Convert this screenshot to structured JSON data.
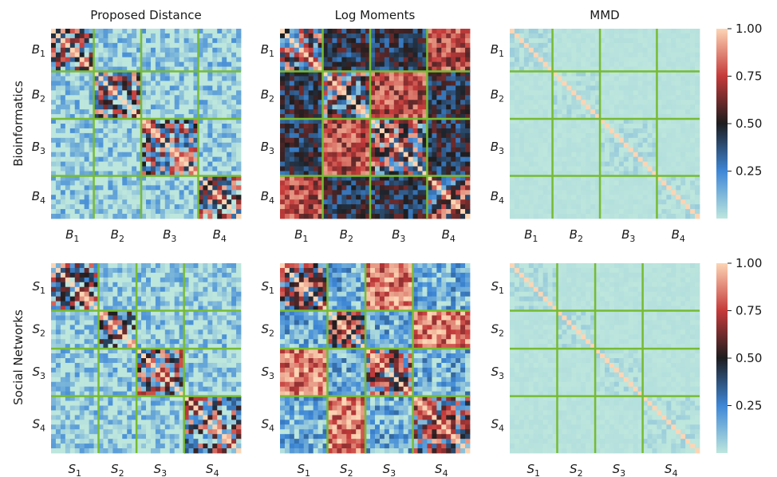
{
  "figure": {
    "column_titles": [
      "Proposed Distance",
      "Log Moments",
      "MMD"
    ],
    "row_labels": [
      "Bioinformatics",
      "Social Networks"
    ]
  },
  "chart_data": {
    "type": "heatmap",
    "colormap": "icefire",
    "value_range": [
      0,
      1
    ],
    "colorbar_ticks": [
      "0.25",
      "0.50",
      "0.75",
      "1.00"
    ],
    "colorbar_tick_values": [
      0.25,
      0.5,
      0.75,
      1.0
    ],
    "block_separator_color": "#77bb33",
    "colors": {
      "low": "#bde6dd",
      "mid_low": "#3d87d6",
      "dark": "#1d1d1f",
      "mid_high": "#c43a3a",
      "high": "#fcd5b5"
    },
    "rows": [
      {
        "name": "Bioinformatics",
        "n": 40,
        "block_sizes": [
          9,
          10,
          12,
          9
        ],
        "tick_labels": [
          "B1",
          "B2",
          "B3",
          "B4"
        ],
        "panels": [
          {
            "title": "Proposed Distance",
            "level_between": 0.05,
            "level_within": 0.45,
            "noise_within": 0.5
          },
          {
            "title": "Log Moments",
            "level_between": 0.6,
            "level_within": 0.5,
            "noise_within": 0.45
          },
          {
            "title": "MMD",
            "level_between": 0.01,
            "level_within": 0.02,
            "noise_within": 0.05
          }
        ]
      },
      {
        "name": "Social Networks",
        "n": 40,
        "block_sizes": [
          10,
          8,
          10,
          12
        ],
        "tick_labels": [
          "S1",
          "S2",
          "S3",
          "S4"
        ],
        "panels": [
          {
            "title": "Proposed Distance",
            "level_between": 0.05,
            "level_within": 0.45,
            "noise_within": 0.5
          },
          {
            "title": "Log Moments",
            "level_between": 0.8,
            "level_within": 0.5,
            "noise_within": 0.45
          },
          {
            "title": "MMD",
            "level_between": 0.01,
            "level_within": 0.02,
            "noise_within": 0.05
          }
        ]
      }
    ]
  }
}
